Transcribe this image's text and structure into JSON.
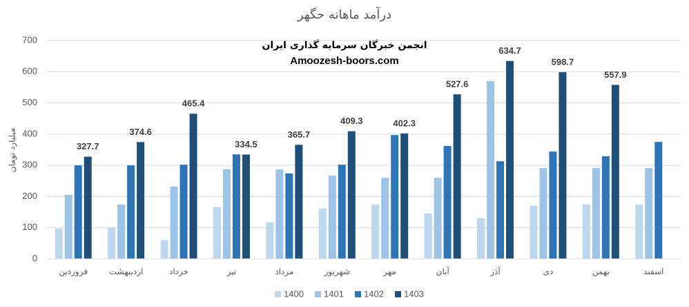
{
  "chart_data": {
    "type": "bar",
    "title": "درآمد ماهانه حگهر",
    "annotations": [
      "انجمن خبرگان سرمایه گذاری ایران",
      "Amoozesh-boors.com"
    ],
    "y_label": "میلیارد تومان",
    "categories": [
      "فروردین",
      "اردیبهشت",
      "خرداد",
      "تیر",
      "مرداد",
      "شهریور",
      "مهر",
      "آبان",
      "آذر",
      "دی",
      "بهمن",
      "اسفند"
    ],
    "series": [
      {
        "name": "1400",
        "color": "#bdd7ee",
        "values": [
          97,
          100,
          60,
          166,
          117,
          161,
          174,
          146,
          130,
          170,
          174,
          174
        ]
      },
      {
        "name": "1401",
        "color": "#9dc3e6",
        "values": [
          205,
          174,
          232,
          287,
          287,
          267,
          260,
          260,
          570,
          291,
          291,
          291
        ]
      },
      {
        "name": "1402",
        "color": "#2e75b6",
        "values": [
          300,
          300,
          302,
          335,
          274,
          302,
          397,
          362,
          313,
          344,
          329,
          375
        ]
      },
      {
        "name": "1403",
        "color": "#1f4e79",
        "values": [
          327.7,
          374.6,
          465.4,
          334.5,
          365.7,
          409.3,
          402.3,
          527.6,
          634.7,
          598.7,
          557.9,
          null
        ],
        "data_labels": true
      }
    ],
    "ylim": [
      0,
      700
    ],
    "yticks": [
      0,
      100,
      200,
      300,
      400,
      500,
      600,
      700
    ],
    "grid": true,
    "legend": "bottom"
  }
}
